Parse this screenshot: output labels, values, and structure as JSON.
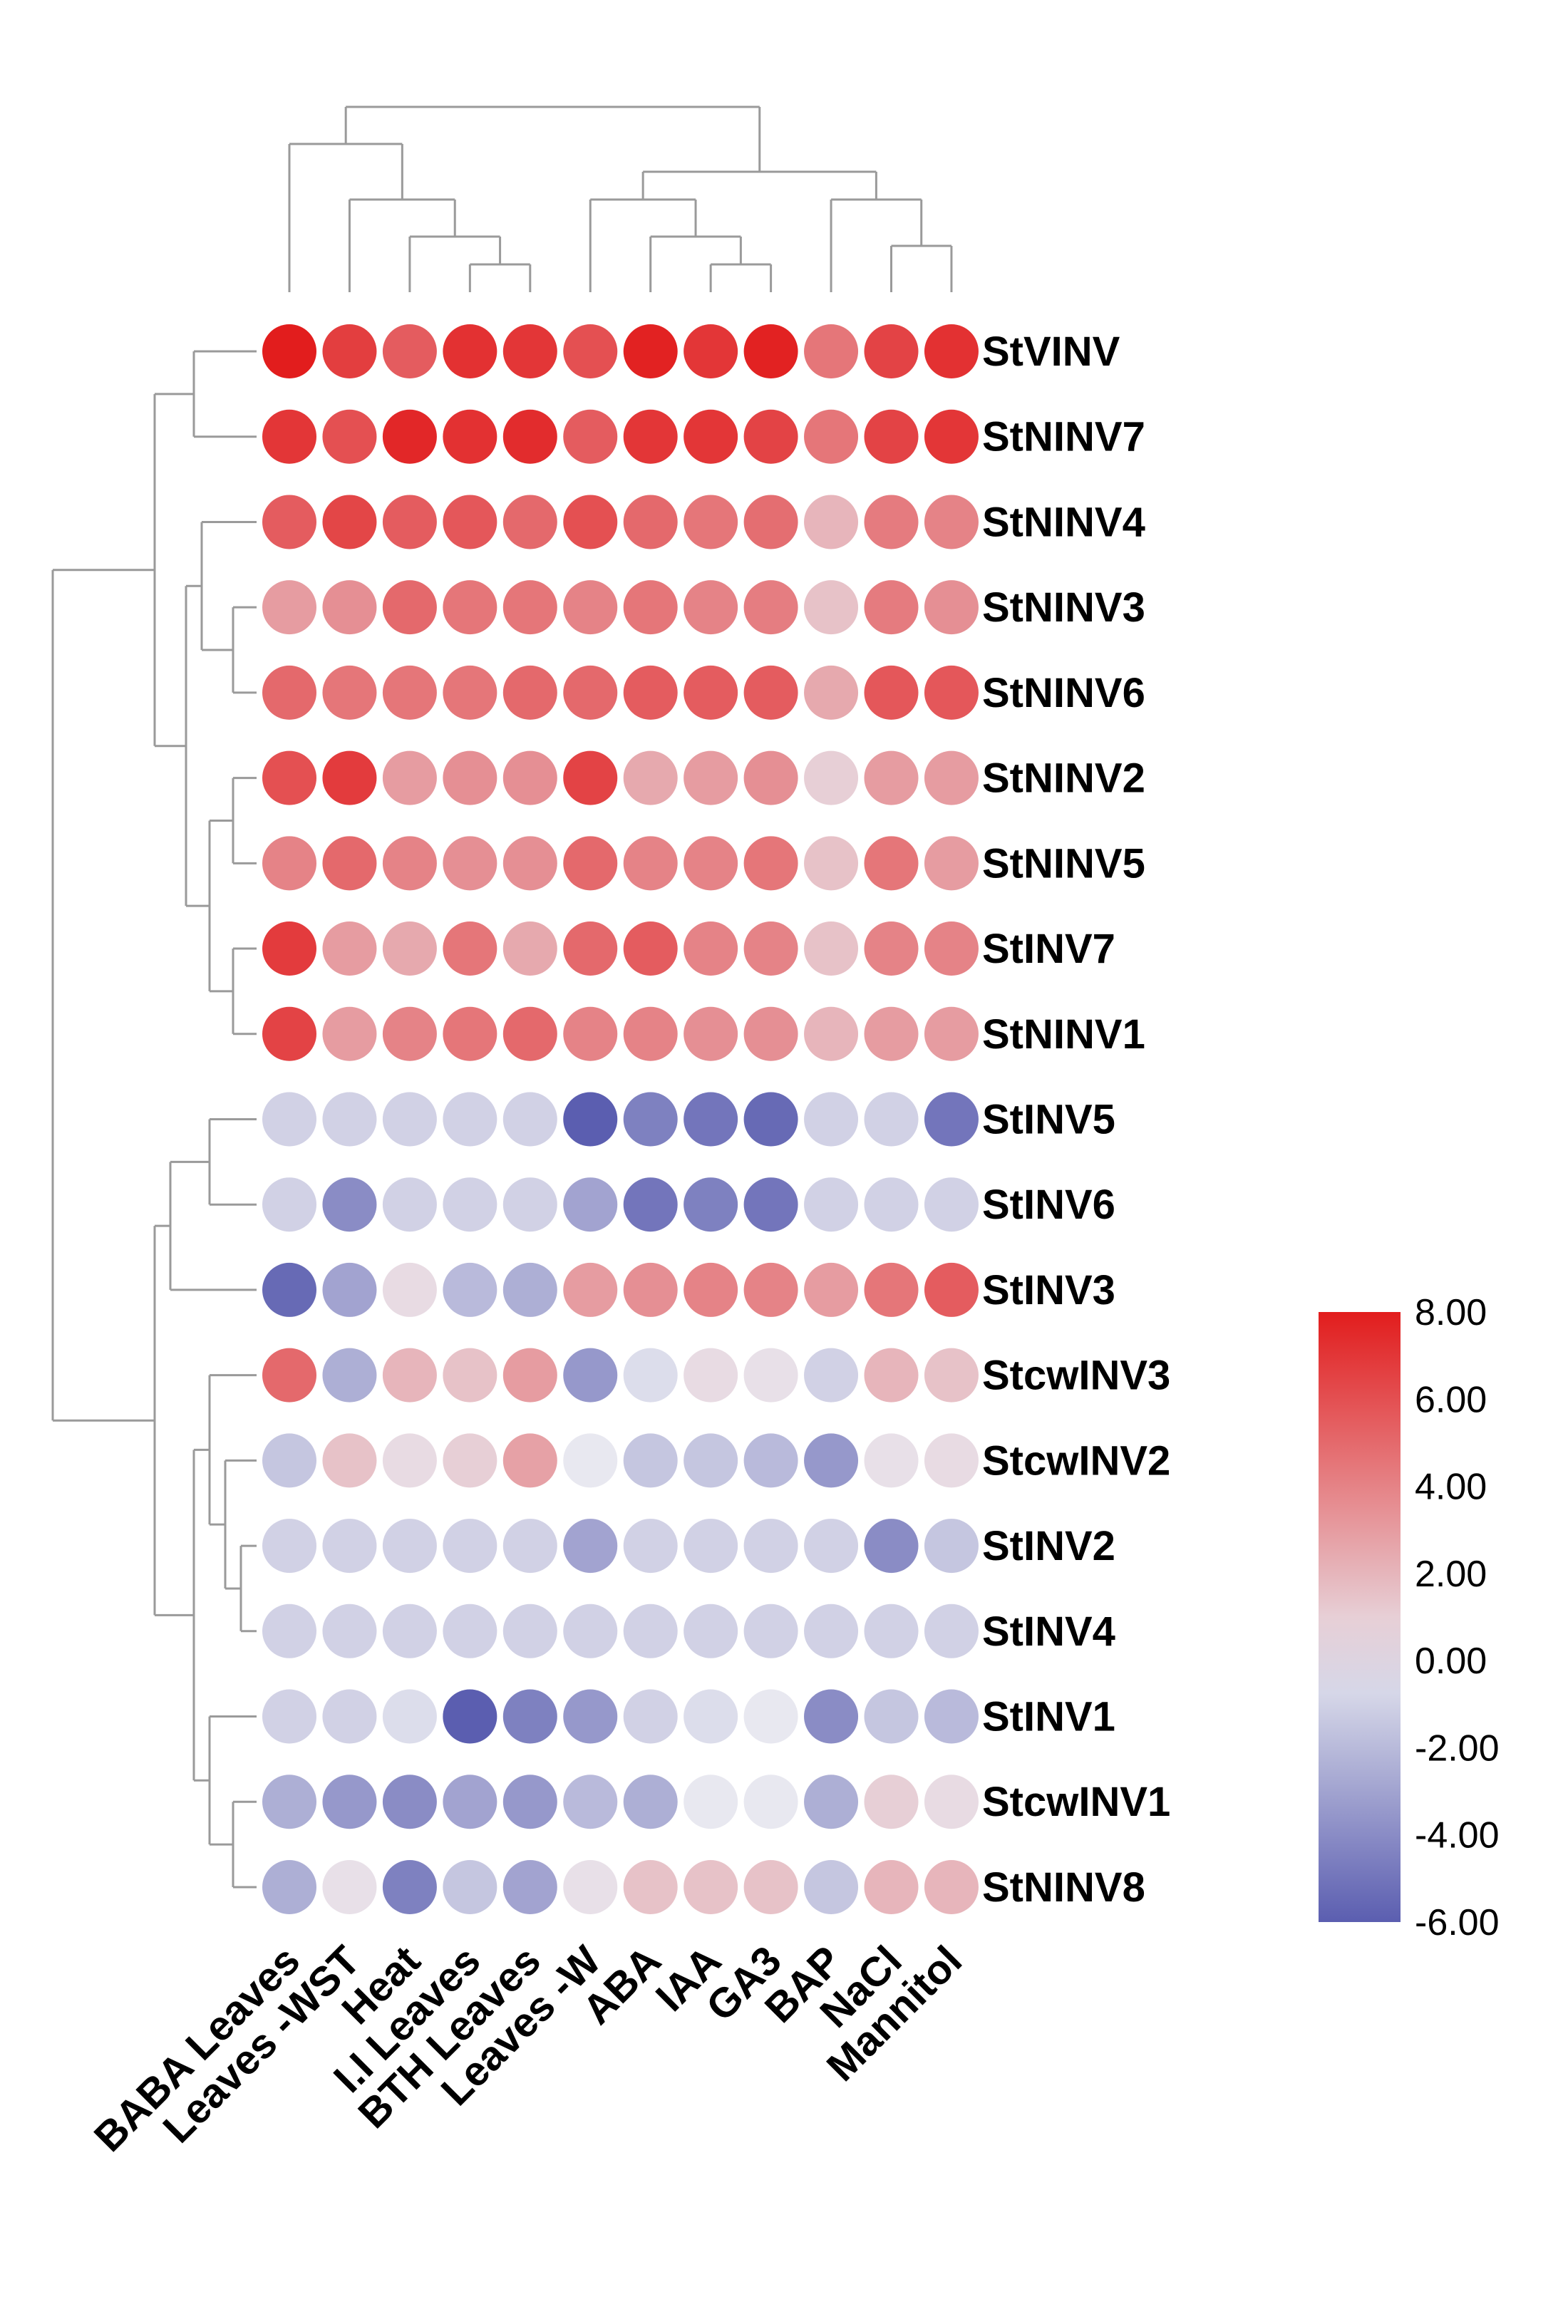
{
  "chart_data": {
    "type": "heatmap",
    "marker": "circle",
    "title": "",
    "xlabel": "",
    "ylabel": "",
    "columns": [
      "BABA Leaves",
      "Leaves -WST",
      "Heat",
      "I.I Leaves",
      "BTH Leaves",
      "Leaves -W",
      "ABA",
      "IAA",
      "GA3",
      "BAP",
      "NaCl",
      "Mannitol"
    ],
    "rows": [
      "StVINV",
      "StNINV7",
      "StNINV4",
      "StNINV3",
      "StNINV6",
      "StNINV2",
      "StNINV5",
      "StINV7",
      "StNINV1",
      "StINV5",
      "StINV6",
      "StINV3",
      "StcwINV3",
      "StcwINV2",
      "StINV2",
      "StINV4",
      "StINV1",
      "StcwINV1",
      "StNINV8"
    ],
    "values": [
      [
        8.0,
        6.7,
        5.5,
        7.2,
        7.0,
        6.0,
        7.8,
        7.0,
        7.8,
        4.5,
        6.5,
        7.2
      ],
      [
        7.0,
        6.0,
        7.6,
        7.2,
        7.4,
        5.5,
        7.0,
        7.0,
        6.5,
        4.5,
        6.5,
        7.0
      ],
      [
        5.5,
        6.4,
        5.5,
        5.7,
        5.0,
        6.0,
        5.0,
        4.5,
        4.8,
        2.0,
        4.3,
        4.0
      ],
      [
        3.0,
        3.5,
        5.0,
        4.5,
        4.5,
        4.0,
        4.5,
        4.0,
        4.2,
        1.5,
        4.3,
        3.5
      ],
      [
        5.0,
        4.5,
        4.5,
        4.5,
        5.0,
        5.0,
        5.5,
        5.5,
        5.5,
        2.5,
        5.7,
        5.7
      ],
      [
        6.0,
        6.8,
        3.0,
        3.5,
        3.5,
        6.5,
        2.5,
        3.0,
        3.5,
        1.0,
        3.0,
        3.0
      ],
      [
        4.0,
        5.0,
        4.0,
        3.5,
        3.5,
        5.0,
        4.0,
        4.0,
        4.5,
        1.5,
        4.5,
        3.0
      ],
      [
        6.8,
        3.0,
        2.5,
        4.5,
        2.5,
        5.0,
        5.5,
        4.0,
        4.0,
        1.5,
        4.0,
        4.0
      ],
      [
        6.5,
        3.0,
        4.0,
        4.5,
        5.0,
        4.0,
        4.0,
        3.5,
        3.5,
        2.0,
        3.0,
        3.0
      ],
      [
        -1.0,
        -1.0,
        -1.0,
        -1.0,
        -1.0,
        -6.0,
        -4.5,
        -5.0,
        -5.5,
        -1.0,
        -1.0,
        -5.0
      ],
      [
        -1.0,
        -4.0,
        -1.0,
        -1.0,
        -1.0,
        -3.0,
        -5.0,
        -4.5,
        -5.0,
        -1.0,
        -1.0,
        -1.0
      ],
      [
        -5.5,
        -3.0,
        0.5,
        -2.0,
        -2.5,
        3.0,
        3.5,
        4.0,
        4.0,
        3.0,
        4.5,
        5.5
      ],
      [
        5.0,
        -2.5,
        2.0,
        1.5,
        3.0,
        -3.5,
        -0.5,
        0.5,
        0.3,
        -1.0,
        2.0,
        1.5
      ],
      [
        -1.5,
        1.5,
        0.5,
        1.0,
        2.8,
        0.0,
        -1.5,
        -1.5,
        -2.0,
        -3.5,
        0.3,
        0.5
      ],
      [
        -1.0,
        -1.0,
        -1.0,
        -1.0,
        -1.0,
        -3.0,
        -1.0,
        -1.0,
        -1.0,
        -1.0,
        -4.0,
        -1.5
      ],
      [
        -1.0,
        -1.0,
        -1.0,
        -1.0,
        -1.0,
        -1.0,
        -1.0,
        -1.0,
        -1.0,
        -1.0,
        -1.0,
        -1.0
      ],
      [
        -1.0,
        -1.0,
        -0.5,
        -6.0,
        -4.5,
        -3.5,
        -1.0,
        -0.5,
        0.0,
        -4.0,
        -1.5,
        -2.0
      ],
      [
        -2.5,
        -3.5,
        -4.0,
        -3.0,
        -3.5,
        -2.0,
        -2.5,
        0.0,
        0.0,
        -2.5,
        1.0,
        0.5
      ],
      [
        -2.5,
        0.3,
        -4.5,
        -1.5,
        -3.0,
        0.3,
        1.5,
        1.5,
        1.5,
        -1.5,
        2.0,
        2.0
      ]
    ],
    "colorbar": {
      "ticks": [
        "8.00",
        "6.00",
        "4.00",
        "2.00",
        "0.00",
        "-2.00",
        "-4.00",
        "-6.00"
      ],
      "min": -6,
      "max": 8,
      "low_color": "#5b5eb0",
      "mid_color": "#e8e8f0",
      "high_color": "#e21d1d"
    },
    "legend_position": "right",
    "row_dendrogram": true,
    "column_dendrogram": true
  }
}
